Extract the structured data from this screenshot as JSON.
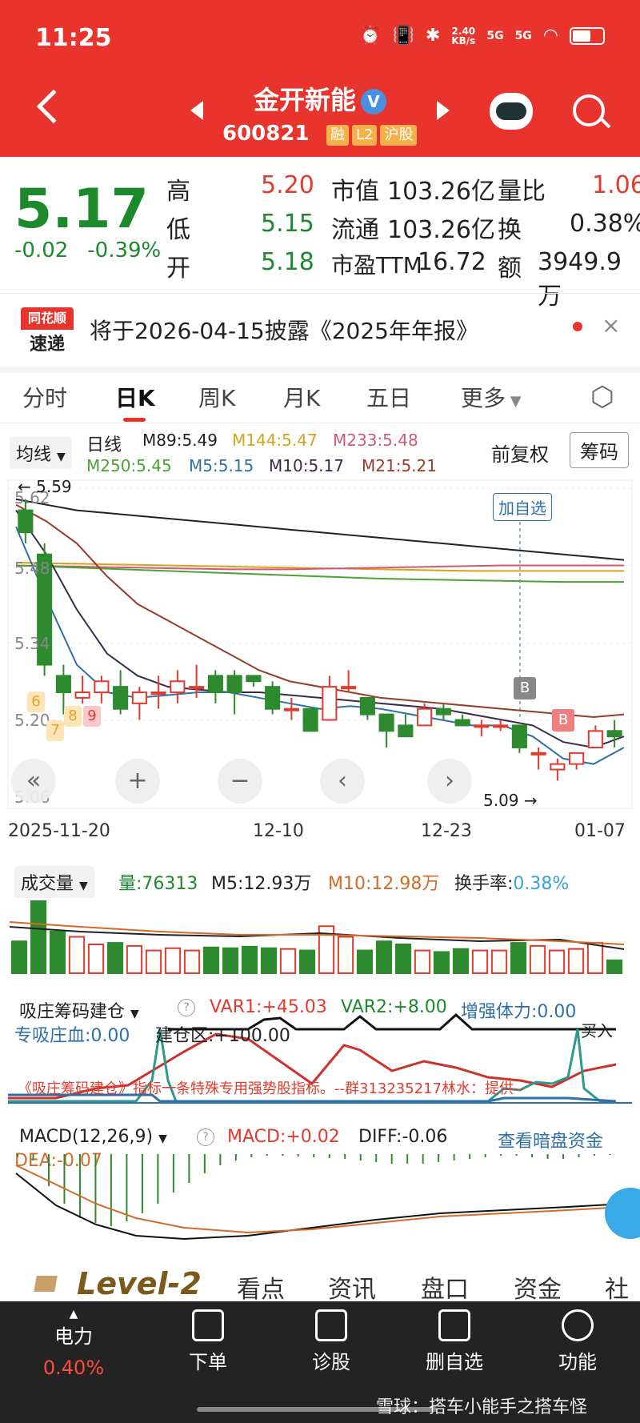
{
  "status_bar": {
    "time": "11:25",
    "net_speed_top": "2.40",
    "net_speed_bottom": "KB/s",
    "sig1": "5G",
    "sig2": "5G"
  },
  "header": {
    "stock_name": "金开新能",
    "verified_mark": "V",
    "stock_code": "600821",
    "tags": [
      "融",
      "L2",
      "沪股"
    ]
  },
  "quote": {
    "price": "5.17",
    "change": "-0.02",
    "change_pct": "-0.39%",
    "rows": [
      {
        "k1": "高",
        "v1": "5.20",
        "k2": "市值",
        "v2": "103.26亿",
        "k3": "量比",
        "v3": "1.06"
      },
      {
        "k1": "低",
        "v1": "5.15",
        "k2": "流通",
        "v2": "103.26亿",
        "k3": "换",
        "v3": "0.38%"
      },
      {
        "k1": "开",
        "v1": "5.18",
        "k2": "市盈TTM",
        "v2": "16.72",
        "k3": "额",
        "v3": "3949.9万"
      }
    ]
  },
  "notice": {
    "logo_top": "同花顺",
    "logo_bottom": "速递",
    "text": "将于2026-04-15披露《2025年年报》",
    "close": "×"
  },
  "tabs": [
    "分时",
    "日K",
    "周K",
    "月K",
    "五日",
    "更多"
  ],
  "kline": {
    "selector": "均线",
    "period": "日线",
    "ma": [
      {
        "label": "M89:5.49",
        "color": "#222222"
      },
      {
        "label": "M144:5.47",
        "color": "#d9a21b"
      },
      {
        "label": "M233:5.48",
        "color": "#d05a76"
      },
      {
        "label": "M250:5.45",
        "color": "#4aa336"
      },
      {
        "label": "M5:5.15",
        "color": "#2e6fa8"
      },
      {
        "label": "M10:5.17",
        "color": "#3a2a4a"
      },
      {
        "label": "M21:5.21",
        "color": "#9a3a2a"
      }
    ],
    "adjust": "前复权",
    "chips_button": "筹码",
    "y_labels": [
      "5.62",
      "5.48",
      "5.34",
      "5.20",
      "5.06"
    ],
    "high_marker": "5.59",
    "low_marker": "5.09",
    "add_favorite": "加自选",
    "b_marker": "B",
    "badges": [
      "6",
      "7",
      "8",
      "9"
    ],
    "x_labels": [
      "2025-11-20",
      "12-10",
      "12-23",
      "01-07"
    ],
    "nav": [
      "«",
      "+",
      "−",
      "‹",
      "›"
    ]
  },
  "chart_data": [
    {
      "type": "candlestick",
      "title": "日K",
      "candles": [
        {
          "o": 5.58,
          "h": 5.6,
          "l": 5.52,
          "c": 5.54
        },
        {
          "o": 5.5,
          "h": 5.52,
          "l": 5.28,
          "c": 5.3
        },
        {
          "o": 5.28,
          "h": 5.3,
          "l": 5.21,
          "c": 5.25
        },
        {
          "o": 5.24,
          "h": 5.28,
          "l": 5.23,
          "c": 5.25
        },
        {
          "o": 5.25,
          "h": 5.28,
          "l": 5.23,
          "c": 5.27
        },
        {
          "o": 5.26,
          "h": 5.29,
          "l": 5.21,
          "c": 5.22
        },
        {
          "o": 5.23,
          "h": 5.26,
          "l": 5.2,
          "c": 5.25
        },
        {
          "o": 5.25,
          "h": 5.28,
          "l": 5.22,
          "c": 5.25
        },
        {
          "o": 5.25,
          "h": 5.29,
          "l": 5.23,
          "c": 5.27
        },
        {
          "o": 5.26,
          "h": 5.3,
          "l": 5.24,
          "c": 5.26
        },
        {
          "o": 5.28,
          "h": 5.29,
          "l": 5.23,
          "c": 5.25
        },
        {
          "o": 5.28,
          "h": 5.29,
          "l": 5.21,
          "c": 5.25
        },
        {
          "o": 5.28,
          "h": 5.28,
          "l": 5.26,
          "c": 5.27
        },
        {
          "o": 5.26,
          "h": 5.27,
          "l": 5.21,
          "c": 5.22
        },
        {
          "o": 5.22,
          "h": 5.24,
          "l": 5.2,
          "c": 5.22
        },
        {
          "o": 5.22,
          "h": 5.22,
          "l": 5.18,
          "c": 5.18
        },
        {
          "o": 5.2,
          "h": 5.28,
          "l": 5.2,
          "c": 5.26
        },
        {
          "o": 5.26,
          "h": 5.29,
          "l": 5.25,
          "c": 5.26
        },
        {
          "o": 5.24,
          "h": 5.24,
          "l": 5.2,
          "c": 5.21
        },
        {
          "o": 5.21,
          "h": 5.21,
          "l": 5.15,
          "c": 5.18
        },
        {
          "o": 5.19,
          "h": 5.21,
          "l": 5.17,
          "c": 5.17
        },
        {
          "o": 5.19,
          "h": 5.23,
          "l": 5.19,
          "c": 5.22
        },
        {
          "o": 5.22,
          "h": 5.23,
          "l": 5.2,
          "c": 5.21
        },
        {
          "o": 5.2,
          "h": 5.21,
          "l": 5.19,
          "c": 5.19
        },
        {
          "o": 5.19,
          "h": 5.2,
          "l": 5.17,
          "c": 5.19
        },
        {
          "o": 5.19,
          "h": 5.2,
          "l": 5.18,
          "c": 5.19
        },
        {
          "o": 5.19,
          "h": 5.19,
          "l": 5.14,
          "c": 5.15
        },
        {
          "o": 5.14,
          "h": 5.15,
          "l": 5.11,
          "c": 5.14
        },
        {
          "o": 5.11,
          "h": 5.13,
          "l": 5.09,
          "c": 5.12
        },
        {
          "o": 5.12,
          "h": 5.14,
          "l": 5.11,
          "c": 5.14
        },
        {
          "o": 5.15,
          "h": 5.19,
          "l": 5.15,
          "c": 5.18
        },
        {
          "o": 5.18,
          "h": 5.2,
          "l": 5.15,
          "c": 5.17
        }
      ],
      "ylim": [
        5.06,
        5.62
      ]
    },
    {
      "type": "bar",
      "title": "成交量",
      "values": [
        42,
        95,
        55,
        48,
        38,
        40,
        36,
        30,
        33,
        30,
        34,
        33,
        35,
        33,
        32,
        30,
        62,
        48,
        30,
        42,
        38,
        30,
        28,
        32,
        30,
        30,
        40,
        36,
        30,
        32,
        40,
        17
      ]
    }
  ],
  "volume": {
    "selector": "成交量",
    "vol": "量:76313",
    "m5": "M5:12.93万",
    "m10": "M10:12.98万",
    "turnover_label": "换手率:",
    "turnover_value": "0.38%"
  },
  "indicator1": {
    "selector": "吸庄筹码建仓",
    "var1": "VAR1:+45.03",
    "var2": "VAR2:+8.00",
    "strength": "增强体力:0.00",
    "zhuang": "专吸庄血:0.00",
    "jiancang": "建仓区:+100.00",
    "buy": "买入",
    "scroll_text": "《吸庄筹码建仓》指标一条特殊专用强势股指标。--群313235217林水：提供--"
  },
  "macd": {
    "selector": "MACD(12,26,9)",
    "macd": "MACD:+0.02",
    "diff": "DIFF:-0.06",
    "dea": "DEA:-0.07",
    "link": "查看暗盘资金"
  },
  "level2": {
    "brand": "Level-2",
    "tabs": [
      "看点",
      "资讯",
      "盘口",
      "资金",
      "社"
    ]
  },
  "bottom_nav": {
    "power_label": "电力",
    "power_value": "0.40%",
    "items": [
      "下单",
      "诊股",
      "删自选",
      "功能"
    ]
  },
  "watermark": "雪球：搭车小能手之搭车怪",
  "colors": {
    "brand_red": "#e8342c",
    "up_red": "#e23a2d",
    "down_green": "#1c8a2c"
  }
}
